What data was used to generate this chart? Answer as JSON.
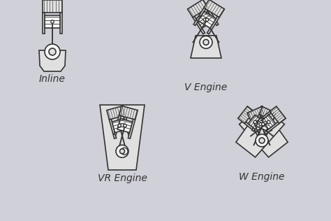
{
  "background_color": "#d0d0d8",
  "line_color": "#333333",
  "fill_color": "#e0e0e0",
  "white_fill": "#f5f5f5",
  "line_width": 1.2,
  "labels": {
    "inline": "Inline",
    "v_engine": "V Engine",
    "vr_engine": "VR Engine",
    "w_engine": "W Engine"
  },
  "font_size": 10,
  "font_family": "DejaVu Sans"
}
